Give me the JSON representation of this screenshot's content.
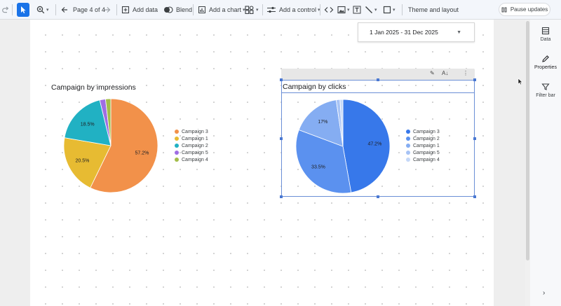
{
  "toolbar": {
    "page_label": "Page 4 of 4",
    "add_data_label": "Add data",
    "blend_label": "Blend",
    "add_chart_label": "Add a chart",
    "add_control_label": "Add a control",
    "theme_label": "Theme and layout",
    "pause_label": "Pause updates"
  },
  "date_control": {
    "value": "1 Jan 2025 - 31 Dec 2025"
  },
  "right_panel": {
    "data_label": "Data",
    "properties_label": "Properties",
    "filter_label": "Filter bar"
  },
  "colors": {
    "accent": "#1a73e8",
    "selection": "#4a78d2"
  },
  "chart_data": [
    {
      "type": "pie",
      "title": "Campaign by impressions",
      "legend_position": "right",
      "slices": [
        {
          "label": "Campaign 3",
          "value": 57.2,
          "color": "#f2914a",
          "data_label": "57.2%"
        },
        {
          "label": "Campaign 1",
          "value": 20.5,
          "color": "#e7bb32",
          "data_label": "20.5%"
        },
        {
          "label": "Campaign 2",
          "value": 18.5,
          "color": "#21b1c3",
          "data_label": "18.5%"
        },
        {
          "label": "Campaign 5",
          "value": 2.0,
          "color": "#9f6de3",
          "data_label": ""
        },
        {
          "label": "Campaign 4",
          "value": 1.8,
          "color": "#a3bd49",
          "data_label": ""
        }
      ]
    },
    {
      "type": "pie",
      "title": "Campaign by clicks",
      "legend_position": "right",
      "slices": [
        {
          "label": "Campaign 3",
          "value": 47.2,
          "color": "#3778ea",
          "data_label": "47.2%"
        },
        {
          "label": "Campaign 2",
          "value": 33.5,
          "color": "#5b91ef",
          "data_label": "33.5%"
        },
        {
          "label": "Campaign 1",
          "value": 17.0,
          "color": "#85adf2",
          "data_label": "17%"
        },
        {
          "label": "Campaign 5",
          "value": 1.3,
          "color": "#a7c3f5",
          "data_label": ""
        },
        {
          "label": "Campaign 4",
          "value": 1.0,
          "color": "#c5d8f8",
          "data_label": ""
        }
      ]
    }
  ]
}
